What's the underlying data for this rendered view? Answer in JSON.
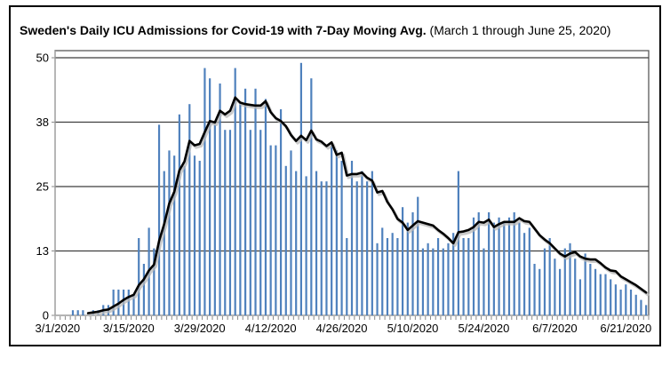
{
  "title": {
    "bold": "Sweden's Daily ICU Admissions for Covid-19 with 7-Day Moving Avg.",
    "normal": " (March 1 through June 25, 2020)"
  },
  "chart_data": {
    "type": "bar",
    "title": "Sweden's Daily ICU Admissions for Covid-19 with 7-Day Moving Avg.",
    "subtitle": "(March 1 through June 25, 2020)",
    "date_range": {
      "start": "3/1/2020",
      "end": "6/25/2020"
    },
    "x_tick_labels": [
      "3/1/2020",
      "3/15/2020",
      "3/29/2020",
      "4/12/2020",
      "4/26/2020",
      "5/10/2020",
      "5/24/2020",
      "6/7/2020",
      "6/21/2020"
    ],
    "x_tick_interval_days": 14,
    "y_tick_labels": [
      "0",
      "13",
      "25",
      "38",
      "50"
    ],
    "y_tick_values": [
      0,
      12.5,
      25,
      37.5,
      50
    ],
    "ylim": [
      0,
      50
    ],
    "grid": true,
    "legend_position": "none",
    "bar_color": "#4f81bd",
    "line_color": "#000000",
    "line_shadow_color": "#b8b8b8",
    "moving_avg_window": 7,
    "series": [
      {
        "name": "Daily ICU admissions",
        "type": "bar",
        "values": [
          0,
          0,
          0,
          1,
          1,
          1,
          0,
          1,
          1,
          2,
          2,
          5,
          5,
          5,
          5,
          4,
          15,
          10,
          17,
          13,
          37,
          28,
          32,
          31,
          39,
          29,
          41,
          31,
          30,
          48,
          46,
          37,
          45,
          36,
          36,
          48,
          41,
          44,
          36,
          44,
          36,
          42,
          33,
          33,
          40,
          29,
          32,
          28,
          49,
          27,
          46,
          28,
          26,
          26,
          33,
          32,
          30,
          15,
          30,
          26,
          28,
          26,
          28,
          14,
          17,
          15,
          16,
          15,
          21,
          18,
          20,
          23,
          13,
          14,
          13,
          15,
          13,
          14,
          16,
          28,
          15,
          15,
          19,
          20,
          13,
          20,
          18,
          19,
          18,
          19,
          20,
          18,
          16,
          17,
          10,
          9,
          13,
          15,
          11,
          9,
          13,
          14,
          11,
          7,
          12,
          10,
          9,
          8,
          8,
          7,
          6,
          5,
          6,
          5,
          4,
          3,
          2
        ]
      },
      {
        "name": "7-Day Moving Avg.",
        "type": "line",
        "derived": "trailing 7-day mean of daily values, plotted from day 7 onward"
      }
    ]
  }
}
